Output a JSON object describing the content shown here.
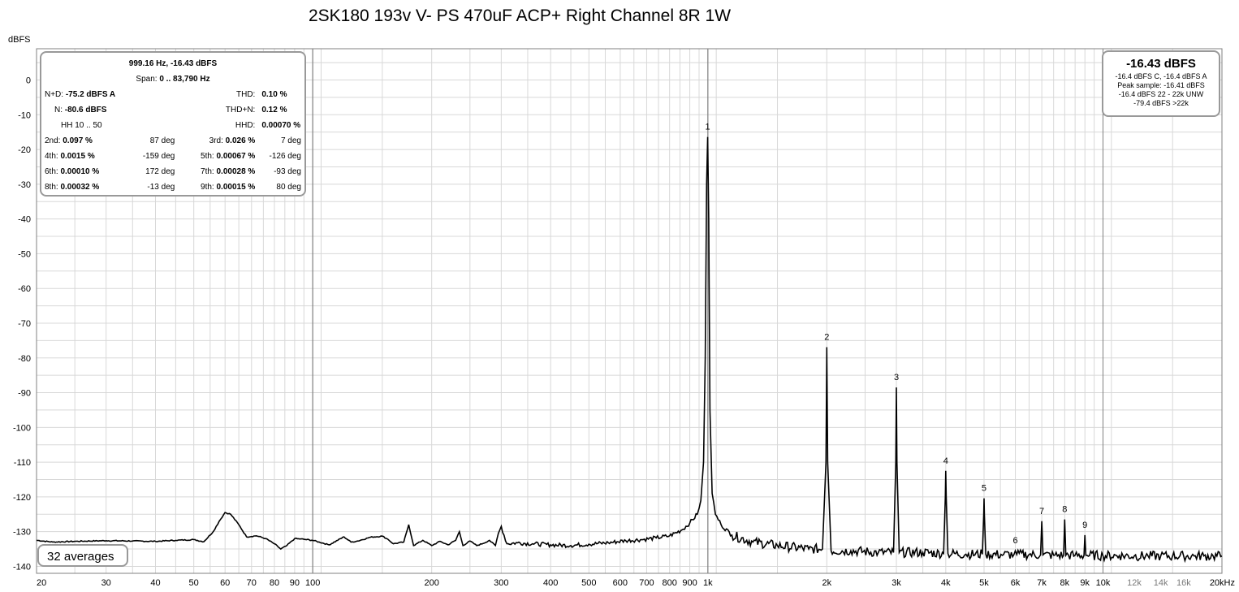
{
  "chart_data": {
    "type": "line",
    "title": "2SK180 193v V- PS 470uF ACP+ Right Channel 8R 1W",
    "ylabel": "dBFS",
    "xscale": "log",
    "xlim": [
      20,
      20000
    ],
    "ylim": [
      -142,
      9
    ],
    "y_ticks": [
      0,
      -10,
      -20,
      -30,
      -40,
      -50,
      -60,
      -70,
      -80,
      -90,
      -100,
      -110,
      -120,
      -130,
      -140
    ],
    "x_ticks": [
      {
        "v": 20,
        "label": "20"
      },
      {
        "v": 30,
        "label": "30"
      },
      {
        "v": 40,
        "label": "40"
      },
      {
        "v": 50,
        "label": "50"
      },
      {
        "v": 60,
        "label": "60"
      },
      {
        "v": 70,
        "label": "70"
      },
      {
        "v": 80,
        "label": "80"
      },
      {
        "v": 90,
        "label": "90"
      },
      {
        "v": 100,
        "label": "100"
      },
      {
        "v": 200,
        "label": "200"
      },
      {
        "v": 300,
        "label": "300"
      },
      {
        "v": 400,
        "label": "400"
      },
      {
        "v": 500,
        "label": "500"
      },
      {
        "v": 600,
        "label": "600"
      },
      {
        "v": 700,
        "label": "700"
      },
      {
        "v": 800,
        "label": "800"
      },
      {
        "v": 900,
        "label": "900"
      },
      {
        "v": 1000,
        "label": "1k"
      },
      {
        "v": 2000,
        "label": "2k"
      },
      {
        "v": 3000,
        "label": "3k"
      },
      {
        "v": 4000,
        "label": "4k"
      },
      {
        "v": 5000,
        "label": "5k"
      },
      {
        "v": 6000,
        "label": "6k"
      },
      {
        "v": 7000,
        "label": "7k"
      },
      {
        "v": 8000,
        "label": "8k"
      },
      {
        "v": 9000,
        "label": "9k"
      },
      {
        "v": 10000,
        "label": "10k"
      },
      {
        "v": 12000,
        "label": "12k"
      },
      {
        "v": 14000,
        "label": "14k"
      },
      {
        "v": 16000,
        "label": "16k"
      },
      {
        "v": 20000,
        "label": "20kHz"
      }
    ],
    "grid": true,
    "series": [
      {
        "x": [
          20,
          22,
          25,
          30,
          35,
          40,
          45,
          50,
          53,
          56,
          58,
          60,
          62,
          65,
          68,
          72,
          76,
          80,
          83,
          86,
          90,
          95,
          100,
          110,
          120,
          125,
          130,
          140,
          150,
          155,
          160,
          170,
          175,
          180,
          190,
          200,
          210,
          220,
          230,
          235,
          240,
          250,
          260,
          270,
          280,
          290,
          295,
          300,
          310,
          330,
          360,
          400,
          450,
          500,
          560,
          620,
          680,
          740,
          800,
          860,
          900,
          940,
          960,
          975,
          985,
          993,
          999,
          1005,
          1012,
          1025,
          1045,
          1080,
          1150,
          1300,
          1500,
          1800,
          1950,
          1990,
          2000,
          2010,
          2050,
          2300,
          2700,
          2950,
          2990,
          3000,
          3010,
          3050,
          3500,
          3950,
          3990,
          4000,
          4010,
          4050,
          4500,
          4950,
          4990,
          5000,
          5010,
          5050,
          5600,
          5950,
          6000,
          6050,
          6500,
          6950,
          7000,
          7050,
          7500,
          7950,
          8000,
          8050,
          8500,
          8950,
          9000,
          9050,
          10000,
          11000,
          12000,
          13000,
          14000,
          15000,
          16000,
          17000,
          18000,
          19000,
          20000
        ],
        "y": [
          -132.5,
          -133,
          -132.8,
          -132.6,
          -132.7,
          -132.8,
          -132.5,
          -132.3,
          -132.9,
          -130,
          -127,
          -124.5,
          -125,
          -128,
          -131.5,
          -131.2,
          -132,
          -133.5,
          -135,
          -134,
          -132,
          -132.2,
          -132.5,
          -133.8,
          -131.5,
          -133,
          -132.7,
          -131.6,
          -131.3,
          -132.2,
          -133.5,
          -133,
          -128,
          -134,
          -132.5,
          -134,
          -132.8,
          -133.8,
          -132.5,
          -130,
          -134,
          -132.7,
          -134,
          -133.4,
          -132.5,
          -134,
          -130.5,
          -128.5,
          -133.5,
          -133.2,
          -133.5,
          -133.8,
          -134,
          -133.6,
          -133.2,
          -132.6,
          -132.3,
          -131.8,
          -131.2,
          -129.5,
          -127.5,
          -125,
          -121,
          -110,
          -80,
          -30,
          -16.4,
          -40,
          -95,
          -119,
          -125,
          -128,
          -131,
          -133,
          -134,
          -135,
          -135,
          -110,
          -76.9,
          -110,
          -135.5,
          -135.5,
          -136,
          -136,
          -110,
          -88.5,
          -110,
          -136,
          -136,
          -136.3,
          -120,
          -112.5,
          -120,
          -136.3,
          -136.5,
          -136.5,
          -125,
          -120.4,
          -125,
          -136.5,
          -136.6,
          -136.6,
          -135.5,
          -136.6,
          -136.6,
          -136.7,
          -127,
          -136.7,
          -136.8,
          -136.8,
          -126.5,
          -136.8,
          -136.8,
          -136.8,
          -131,
          -136.8,
          -136.9,
          -136.9,
          -137,
          -137,
          -137,
          -137,
          -137,
          -137,
          -137,
          -137,
          -137
        ]
      }
    ],
    "markers": [
      {
        "label": "1",
        "x": 999,
        "y": -16.4
      },
      {
        "label": "2",
        "x": 2000,
        "y": -76.9
      },
      {
        "label": "3",
        "x": 3000,
        "y": -88.5
      },
      {
        "label": "4",
        "x": 4000,
        "y": -112.5
      },
      {
        "label": "5",
        "x": 5000,
        "y": -120.4
      },
      {
        "label": "6",
        "x": 6000,
        "y": -135.5
      },
      {
        "label": "7",
        "x": 7000,
        "y": -127
      },
      {
        "label": "8",
        "x": 8000,
        "y": -126.5
      },
      {
        "label": "9",
        "x": 9000,
        "y": -131
      }
    ]
  },
  "stats": {
    "header": "999.16 Hz, -16.43 dBFS",
    "span_label": "Span:",
    "span_value": "0 .. 83,790 Hz",
    "nd_label": "N+D:",
    "nd_value": "-75.2 dBFS A",
    "thd_label": "THD:",
    "thd_value": "0.10 %",
    "n_label": "N:",
    "n_value": "-80.6 dBFS",
    "thdn_label": "THD+N:",
    "thdn_value": "0.12 %",
    "hh_label": "HH 10 .. 50",
    "hhd_label": "HHD:",
    "hhd_value": "0.00070 %",
    "harmonics": [
      {
        "l1": "2nd:",
        "v1": "0.097 %",
        "p1": "87 deg",
        "l2": "3rd:",
        "v2": "0.026 %",
        "p2": "7 deg"
      },
      {
        "l1": "4th:",
        "v1": "0.0015 %",
        "p1": "-159 deg",
        "l2": "5th:",
        "v2": "0.00067 %",
        "p2": "-126 deg"
      },
      {
        "l1": "6th:",
        "v1": "0.00010 %",
        "p1": "172 deg",
        "l2": "7th:",
        "v2": "0.00028 %",
        "p2": "-93 deg"
      },
      {
        "l1": "8th:",
        "v1": "0.00032 %",
        "p1": "-13 deg",
        "l2": "9th:",
        "v2": "0.00015 %",
        "p2": "80 deg"
      }
    ]
  },
  "level": {
    "main": "-16.43 dBFS",
    "line1": "-16.4 dBFS C, -16.4 dBFS A",
    "line2": "Peak sample: -16.41 dBFS",
    "line3": "-16.4 dBFS 22 - 22k UNW",
    "line4": "-79.4 dBFS >22k"
  },
  "averages": "32 averages",
  "colors": {
    "trace": "#000000",
    "grid_minor": "#d8d8d8",
    "grid_major": "#808080",
    "frame": "#808080"
  }
}
